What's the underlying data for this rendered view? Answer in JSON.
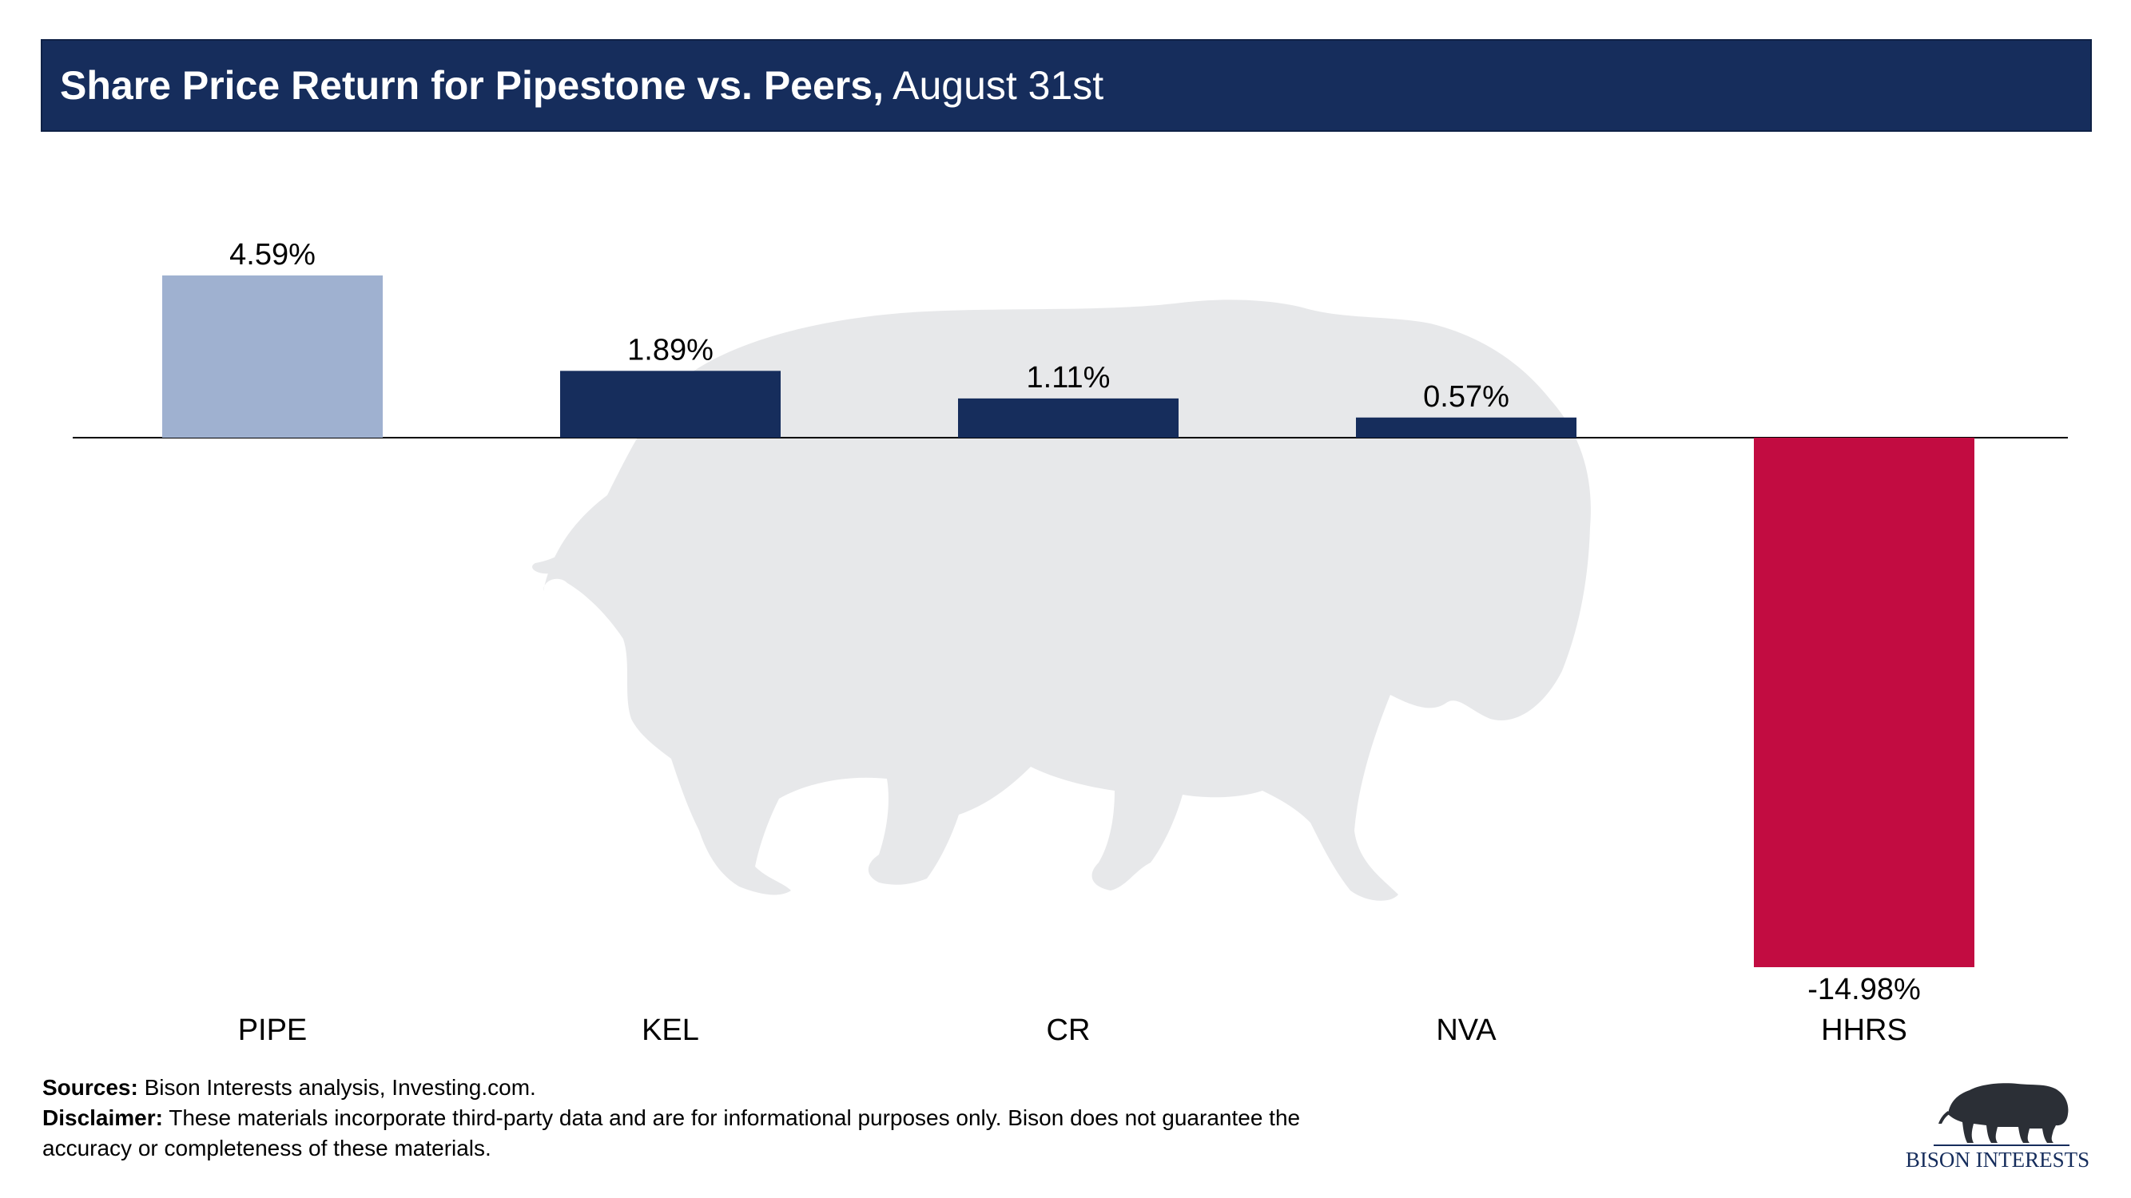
{
  "header": {
    "title_bold": "Share Price Return for Pipestone vs. Peers,",
    "title_rest": " August 31st"
  },
  "chart_data": {
    "type": "bar",
    "categories": [
      "PIPE",
      "KEL",
      "CR",
      "NVA",
      "HHRS"
    ],
    "values": [
      4.59,
      1.89,
      1.11,
      0.57,
      -14.98
    ],
    "labels": [
      "4.59%",
      "1.89%",
      "1.11%",
      "0.57%",
      "-14.98%"
    ],
    "colors": [
      "#9fb1d0",
      "#162d5c",
      "#162d5c",
      "#162d5c",
      "#c20c41"
    ],
    "title": "Share Price Return for Pipestone vs. Peers, August 31st",
    "xlabel": "",
    "ylabel": "",
    "ylim": [
      -15,
      5
    ],
    "grid": false,
    "legend": "none"
  },
  "footer": {
    "sources_label": "Sources:",
    "sources_text": " Bison Interests analysis, Investing.com.",
    "disclaimer_label": "Disclaimer:",
    "disclaimer_text": " These materials incorporate third-party data and are for informational purposes only. Bison does not guarantee the accuracy or completeness of these materials."
  },
  "logo": {
    "text": "BISON INTERESTS",
    "icon": "bison-icon"
  }
}
